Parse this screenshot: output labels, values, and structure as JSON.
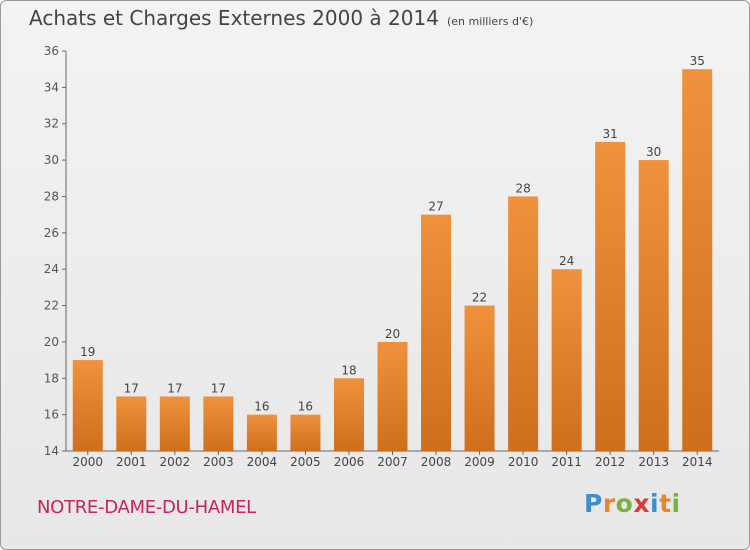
{
  "chart_data": {
    "type": "bar",
    "title": "Achats et Charges Externes 2000 à 2014",
    "subtitle": "(en milliers d'€)",
    "categories": [
      "2000",
      "2001",
      "2002",
      "2003",
      "2004",
      "2005",
      "2006",
      "2007",
      "2008",
      "2009",
      "2010",
      "2011",
      "2012",
      "2013",
      "2014"
    ],
    "values": [
      19,
      17,
      17,
      17,
      16,
      16,
      18,
      20,
      27,
      22,
      28,
      24,
      31,
      30,
      35
    ],
    "ylim": [
      14,
      36
    ],
    "yticks": [
      14,
      16,
      18,
      20,
      22,
      24,
      26,
      28,
      30,
      32,
      34,
      36
    ],
    "xlabel": "",
    "ylabel": "",
    "grid": false,
    "bar_color": "#f0913c",
    "bar_color_dark": "#cf6f1c"
  },
  "footer": {
    "commune": "NOTRE-DAME-DU-HAMEL",
    "commune_color": "#c8235f"
  },
  "logo": {
    "text": "Proxiti",
    "letter_colors": [
      "#3a8fd0",
      "#e8872a",
      "#7ab23c",
      "#d83a3a",
      "#3a8fd0",
      "#e8872a",
      "#7ab23c"
    ]
  }
}
